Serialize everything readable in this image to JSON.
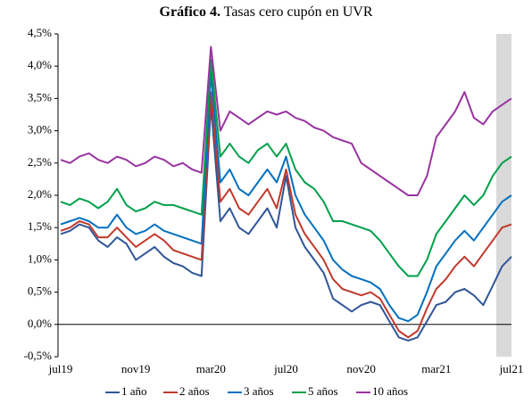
{
  "chart_data": {
    "type": "line",
    "title_label": "Gráfico 4.",
    "title": "Tasas cero cupón en UVR",
    "categories": [
      "jul19",
      null,
      null,
      null,
      null,
      null,
      null,
      null,
      "nov19",
      null,
      null,
      null,
      null,
      null,
      null,
      null,
      "mar20",
      null,
      null,
      null,
      null,
      null,
      null,
      null,
      "jul20",
      null,
      null,
      null,
      null,
      null,
      null,
      null,
      "nov20",
      null,
      null,
      null,
      null,
      null,
      null,
      null,
      "mar21",
      null,
      null,
      null,
      null,
      null,
      null,
      null,
      "jul21"
    ],
    "series": [
      {
        "name": "1 año",
        "color": "#2f5597",
        "values": [
          1.4,
          1.45,
          1.55,
          1.5,
          1.3,
          1.2,
          1.35,
          1.25,
          1.0,
          1.1,
          1.2,
          1.05,
          0.95,
          0.9,
          0.8,
          0.75,
          3.4,
          1.6,
          1.8,
          1.5,
          1.4,
          1.6,
          1.8,
          1.5,
          2.3,
          1.5,
          1.2,
          1.0,
          0.8,
          0.4,
          0.3,
          0.2,
          0.3,
          0.35,
          0.3,
          0.05,
          -0.2,
          -0.25,
          -0.2,
          0.05,
          0.3,
          0.35,
          0.5,
          0.55,
          0.45,
          0.3,
          0.6,
          0.9,
          1.05
        ]
      },
      {
        "name": "2 años",
        "color": "#c0392b",
        "values": [
          1.45,
          1.5,
          1.6,
          1.55,
          1.35,
          1.35,
          1.5,
          1.35,
          1.2,
          1.3,
          1.4,
          1.3,
          1.15,
          1.1,
          1.05,
          1.0,
          3.6,
          1.9,
          2.1,
          1.8,
          1.7,
          1.9,
          2.1,
          1.8,
          2.4,
          1.7,
          1.4,
          1.2,
          1.0,
          0.7,
          0.55,
          0.5,
          0.45,
          0.5,
          0.4,
          0.15,
          -0.1,
          -0.2,
          -0.1,
          0.25,
          0.55,
          0.7,
          0.9,
          1.05,
          0.9,
          1.1,
          1.3,
          1.5,
          1.55
        ]
      },
      {
        "name": "3 años",
        "color": "#0070c0",
        "values": [
          1.55,
          1.6,
          1.65,
          1.6,
          1.5,
          1.5,
          1.7,
          1.5,
          1.4,
          1.45,
          1.55,
          1.45,
          1.4,
          1.35,
          1.3,
          1.25,
          3.9,
          2.2,
          2.4,
          2.1,
          2.0,
          2.2,
          2.4,
          2.2,
          2.6,
          2.0,
          1.7,
          1.5,
          1.3,
          1.0,
          0.85,
          0.75,
          0.7,
          0.65,
          0.55,
          0.3,
          0.1,
          0.05,
          0.15,
          0.5,
          0.9,
          1.1,
          1.3,
          1.45,
          1.3,
          1.5,
          1.7,
          1.9,
          2.0
        ]
      },
      {
        "name": "5 años",
        "color": "#00a04a",
        "values": [
          1.9,
          1.85,
          1.95,
          1.9,
          1.8,
          1.9,
          2.1,
          1.85,
          1.75,
          1.8,
          1.9,
          1.85,
          1.85,
          1.8,
          1.75,
          1.7,
          4.1,
          2.6,
          2.8,
          2.6,
          2.5,
          2.7,
          2.8,
          2.6,
          2.8,
          2.4,
          2.2,
          2.1,
          1.9,
          1.6,
          1.6,
          1.55,
          1.5,
          1.45,
          1.3,
          1.1,
          0.9,
          0.75,
          0.75,
          1.0,
          1.4,
          1.6,
          1.8,
          2.0,
          1.85,
          2.0,
          2.3,
          2.5,
          2.6
        ]
      },
      {
        "name": "10 años",
        "color": "#9933a0",
        "values": [
          2.55,
          2.5,
          2.6,
          2.65,
          2.55,
          2.5,
          2.6,
          2.55,
          2.45,
          2.5,
          2.6,
          2.55,
          2.45,
          2.5,
          2.4,
          2.35,
          4.3,
          3.0,
          3.3,
          3.2,
          3.1,
          3.2,
          3.3,
          3.25,
          3.3,
          3.2,
          3.15,
          3.05,
          3.0,
          2.9,
          2.85,
          2.8,
          2.5,
          2.4,
          2.3,
          2.2,
          2.1,
          2.0,
          2.0,
          2.3,
          2.9,
          3.1,
          3.3,
          3.6,
          3.2,
          3.1,
          3.3,
          3.4,
          3.5
        ]
      }
    ],
    "ylim": [
      -0.5,
      4.5
    ],
    "yticks": [
      {
        "value": -0.5,
        "label": "-0,5%"
      },
      {
        "value": 0,
        "label": "0,0%"
      },
      {
        "value": 0.5,
        "label": "0,5%"
      },
      {
        "value": 1,
        "label": "1,0%"
      },
      {
        "value": 1.5,
        "label": "1,5%"
      },
      {
        "value": 2,
        "label": "2,0%"
      },
      {
        "value": 2.5,
        "label": "2,5%"
      },
      {
        "value": 3,
        "label": "3,0%"
      },
      {
        "value": 3.5,
        "label": "3,5%"
      },
      {
        "value": 4,
        "label": "4,0%"
      },
      {
        "value": 4.5,
        "label": "4,5%"
      }
    ],
    "legend": "bottom"
  }
}
